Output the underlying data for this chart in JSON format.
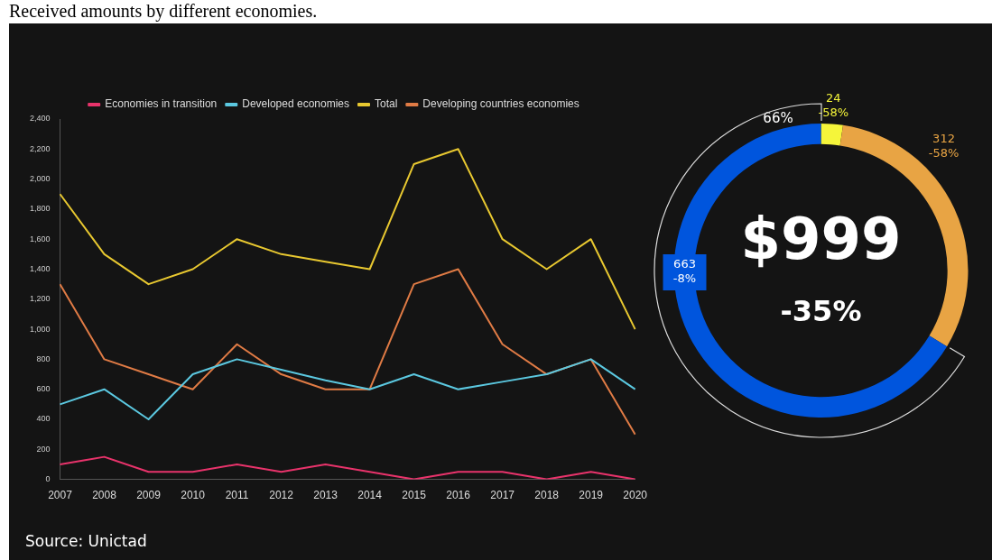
{
  "chart_data": [
    {
      "type": "line",
      "title": "Received amounts by different economies.",
      "categories": [
        "2007",
        "2008",
        "2009",
        "2010",
        "2011",
        "2012",
        "2013",
        "2014",
        "2015",
        "2016",
        "2017",
        "2018",
        "2019",
        "2020"
      ],
      "series": [
        {
          "name": "Economies in transition",
          "color": "#e8336b",
          "values": [
            100,
            150,
            50,
            50,
            100,
            50,
            100,
            50,
            0,
            50,
            50,
            0,
            50,
            0
          ]
        },
        {
          "name": "Developed economies",
          "color": "#5bc8e0",
          "values": [
            500,
            600,
            400,
            700,
            800,
            730,
            660,
            600,
            700,
            600,
            650,
            700,
            800,
            600
          ]
        },
        {
          "name": "Total",
          "color": "#e8c830",
          "values": [
            1900,
            1500,
            1300,
            1400,
            1600,
            1500,
            1450,
            1400,
            2100,
            2200,
            1600,
            1400,
            1600,
            1000
          ]
        },
        {
          "name": "Developing countries economies",
          "color": "#e07b45",
          "values": [
            1300,
            800,
            700,
            600,
            900,
            700,
            600,
            600,
            1300,
            1400,
            900,
            700,
            800,
            300
          ]
        }
      ],
      "ylim": [
        0,
        2400
      ],
      "yticks": [
        0,
        200,
        400,
        600,
        {
          "value": 800,
          "label": "800"
        },
        {
          "value": 1000,
          "label": "1,000"
        },
        {
          "value": 1200,
          "label": "1,200"
        },
        {
          "value": 1400,
          "label": "1,400"
        },
        {
          "value": 1600,
          "label": "1,600"
        },
        {
          "value": 1800,
          "label": "1,800"
        },
        {
          "value": 2000,
          "label": "2,000"
        },
        {
          "value": 2200,
          "label": "2,200"
        },
        {
          "value": 2400,
          "label": "2,400"
        }
      ],
      "grid": false,
      "legend": "top",
      "marker": "none",
      "line_style": "solid",
      "annotations": [
        "Source: Unictad"
      ]
    },
    {
      "type": "donut",
      "title": "$999",
      "subtitle": "-35%",
      "categories": [
        null,
        null,
        null
      ],
      "values": [
        24,
        312,
        663
      ],
      "colors": [
        "#f5f53a",
        "#e8a444",
        "#0055dd"
      ],
      "value_labels": [
        "24",
        "312",
        "663"
      ],
      "annotations": [
        "-58%",
        "-58%",
        "-8%",
        "66%"
      ]
    }
  ]
}
